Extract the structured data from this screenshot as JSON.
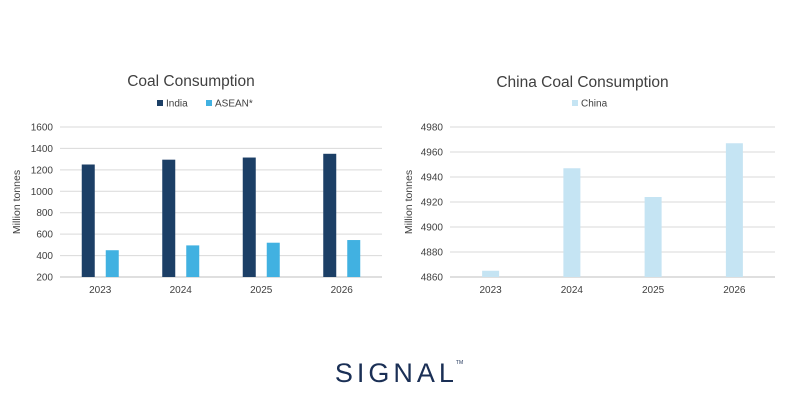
{
  "chart_data": [
    {
      "type": "bar",
      "title": "Coal Consumption",
      "xlabel": "",
      "ylabel": "Million tonnes",
      "categories": [
        "2023",
        "2024",
        "2025",
        "2026"
      ],
      "series": [
        {
          "name": "India",
          "values": [
            1250,
            1295,
            1315,
            1350
          ],
          "color": "#1c3f66"
        },
        {
          "name": "ASEAN*",
          "values": [
            450,
            495,
            520,
            545
          ],
          "color": "#41b1e1"
        }
      ],
      "ylim": [
        200,
        1600
      ],
      "yticks": [
        "200",
        "400",
        "600",
        "800",
        "1000",
        "1200",
        "1400",
        "1600"
      ],
      "grid": true,
      "legend": "top-center"
    },
    {
      "type": "bar",
      "title": "China Coal Consumption",
      "xlabel": "",
      "ylabel": "Million tonnes",
      "categories": [
        "2023",
        "2024",
        "2025",
        "2026"
      ],
      "series": [
        {
          "name": "China",
          "values": [
            4865,
            4947,
            4924,
            4967
          ],
          "color": "#c5e4f3"
        }
      ],
      "ylim": [
        4860,
        4980
      ],
      "yticks": [
        "4860",
        "4880",
        "4900",
        "4920",
        "4940",
        "4960",
        "4980"
      ],
      "grid": true,
      "legend": "top-center"
    }
  ],
  "logo": {
    "text": "SIGNAL",
    "tm": "TM"
  },
  "colors": {
    "grid": "#d9d9d9",
    "text": "#404040",
    "brand": "#1a2f55"
  }
}
